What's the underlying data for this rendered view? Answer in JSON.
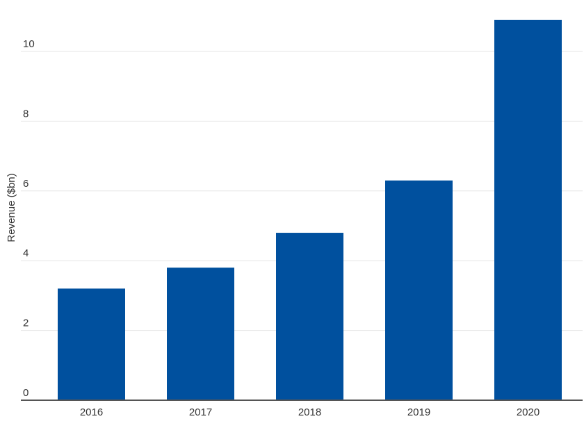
{
  "chart_data": {
    "type": "bar",
    "title": "",
    "xlabel": "",
    "ylabel": "Revenue ($bn)",
    "categories": [
      "2016",
      "2017",
      "2018",
      "2019",
      "2020"
    ],
    "values": [
      3.2,
      3.8,
      4.8,
      6.3,
      10.9
    ],
    "ylim": [
      0,
      11
    ],
    "yticks": [
      0,
      2,
      4,
      6,
      8,
      10
    ],
    "grid": true,
    "legend": "none",
    "bar_color": "#00509e"
  }
}
